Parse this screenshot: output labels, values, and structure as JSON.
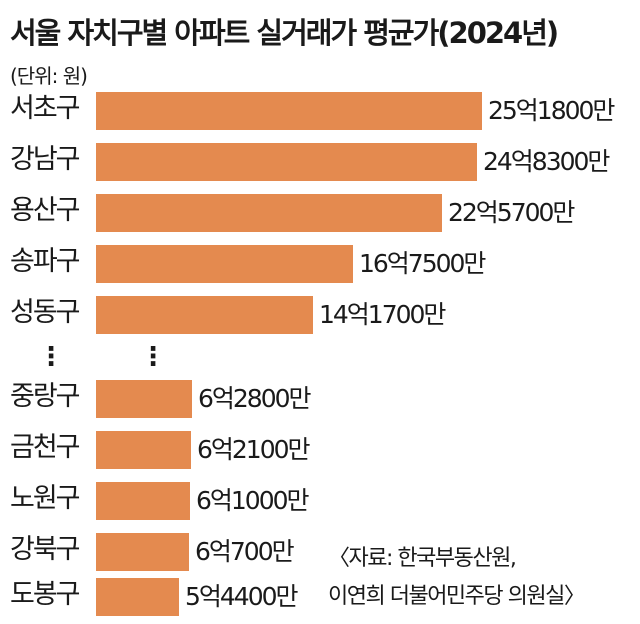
{
  "title": "서울 자치구별 아파트 실거래가 평균가(2024년)",
  "unit": "(단위: 원)",
  "ellipsis": "⋮",
  "chart_data": {
    "type": "bar",
    "orientation": "horizontal",
    "color": "#e48a4f",
    "categories": [
      "서초구",
      "강남구",
      "용산구",
      "송파구",
      "성동구",
      "중랑구",
      "금천구",
      "노원구",
      "강북구",
      "도봉구"
    ],
    "values": [
      2518000000,
      2483000000,
      2257000000,
      1675000000,
      1417000000,
      628000000,
      621000000,
      610000000,
      607000000,
      544000000
    ],
    "labels": [
      "25억1800만",
      "24억8300만",
      "22억5700만",
      "16억7500만",
      "14억1700만",
      "6억2800만",
      "6억2100만",
      "6억1000만",
      "6억700만",
      "5억4400만"
    ],
    "gap_after_index": 4
  },
  "source": {
    "line1": "〈자료: 한국부동산원,",
    "line2": "이연희 더불어민주당 의원실〉"
  }
}
